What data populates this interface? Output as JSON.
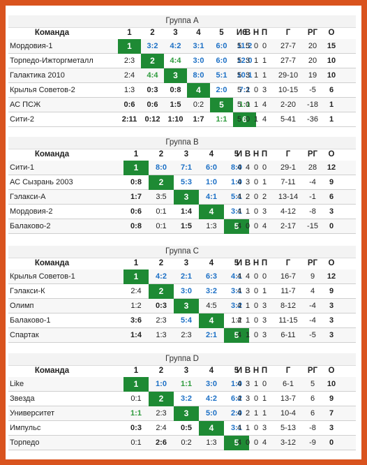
{
  "header_labels": {
    "team": "Команда",
    "stats": [
      "И",
      "В",
      "Н",
      "П",
      "Г",
      "РГ",
      "О"
    ]
  },
  "groups": [
    {
      "title": "Группа A",
      "numbers": [
        "1",
        "2",
        "3",
        "4",
        "5",
        "6"
      ],
      "rows": [
        {
          "team": "Мордовия-1",
          "cells": [
            {
              "v": "1",
              "t": "diag"
            },
            {
              "v": "3:2",
              "t": "w"
            },
            {
              "v": "4:2",
              "t": "w"
            },
            {
              "v": "3:1",
              "t": "w"
            },
            {
              "v": "6:0",
              "t": "wb"
            },
            {
              "v": "11:2",
              "t": "wb"
            }
          ],
          "stats": [
            "5",
            "5",
            "0",
            "0",
            "27-7",
            "20",
            "15"
          ]
        },
        {
          "team": "Торпедо-Ижторгметалл",
          "cells": [
            {
              "v": "2:3",
              "t": "l"
            },
            {
              "v": "2",
              "t": "diag"
            },
            {
              "v": "4:4",
              "t": "d"
            },
            {
              "v": "3:0",
              "t": "wb"
            },
            {
              "v": "6:0",
              "t": "wb"
            },
            {
              "v": "12:0",
              "t": "wb"
            }
          ],
          "stats": [
            "5",
            "3",
            "1",
            "1",
            "27-7",
            "20",
            "10"
          ]
        },
        {
          "team": "Галактика 2010",
          "cells": [
            {
              "v": "2:4",
              "t": "l"
            },
            {
              "v": "4:4",
              "t": "d"
            },
            {
              "v": "3",
              "t": "diag"
            },
            {
              "v": "8:0",
              "t": "wb"
            },
            {
              "v": "5:1",
              "t": "wb"
            },
            {
              "v": "10:1",
              "t": "wb"
            }
          ],
          "stats": [
            "5",
            "3",
            "1",
            "1",
            "29-10",
            "19",
            "10"
          ]
        },
        {
          "team": "Крылья Советов-2",
          "cells": [
            {
              "v": "1:3",
              "t": "l"
            },
            {
              "v": "0:3",
              "t": "lb"
            },
            {
              "v": "0:8",
              "t": "lb"
            },
            {
              "v": "4",
              "t": "diag"
            },
            {
              "v": "2:0",
              "t": "w"
            },
            {
              "v": "7:1",
              "t": "wb"
            }
          ],
          "stats": [
            "5",
            "2",
            "0",
            "3",
            "10-15",
            "-5",
            "6"
          ]
        },
        {
          "team": "АС ПСЖ",
          "cells": [
            {
              "v": "0:6",
              "t": "lb"
            },
            {
              "v": "0:6",
              "t": "lb"
            },
            {
              "v": "1:5",
              "t": "lb"
            },
            {
              "v": "0:2",
              "t": "l"
            },
            {
              "v": "5",
              "t": "diag"
            },
            {
              "v": "1:1",
              "t": "d"
            }
          ],
          "stats": [
            "5",
            "0",
            "1",
            "4",
            "2-20",
            "-18",
            "1"
          ]
        },
        {
          "team": "Сити-2",
          "cells": [
            {
              "v": "2:11",
              "t": "lb"
            },
            {
              "v": "0:12",
              "t": "lb"
            },
            {
              "v": "1:10",
              "t": "lb"
            },
            {
              "v": "1:7",
              "t": "lb"
            },
            {
              "v": "1:1",
              "t": "d"
            },
            {
              "v": "6",
              "t": "diag"
            }
          ],
          "stats": [
            "5",
            "0",
            "1",
            "4",
            "5-41",
            "-36",
            "1"
          ]
        }
      ]
    },
    {
      "title": "Группа B",
      "numbers": [
        "1",
        "2",
        "3",
        "4",
        "5"
      ],
      "rows": [
        {
          "team": "Сити-1",
          "cells": [
            {
              "v": "1",
              "t": "diag"
            },
            {
              "v": "8:0",
              "t": "wb"
            },
            {
              "v": "7:1",
              "t": "wb"
            },
            {
              "v": "6:0",
              "t": "wb"
            },
            {
              "v": "8:0",
              "t": "wb"
            }
          ],
          "stats": [
            "4",
            "4",
            "0",
            "0",
            "29-1",
            "28",
            "12"
          ]
        },
        {
          "team": "АС Сызрань 2003",
          "cells": [
            {
              "v": "0:8",
              "t": "lb"
            },
            {
              "v": "2",
              "t": "diag"
            },
            {
              "v": "5:3",
              "t": "w"
            },
            {
              "v": "1:0",
              "t": "w"
            },
            {
              "v": "1:0",
              "t": "w"
            }
          ],
          "stats": [
            "4",
            "3",
            "0",
            "1",
            "7-11",
            "-4",
            "9"
          ]
        },
        {
          "team": "Гэлакси-А",
          "cells": [
            {
              "v": "1:7",
              "t": "lb"
            },
            {
              "v": "3:5",
              "t": "l"
            },
            {
              "v": "3",
              "t": "diag"
            },
            {
              "v": "4:1",
              "t": "wb"
            },
            {
              "v": "5:1",
              "t": "wb"
            }
          ],
          "stats": [
            "4",
            "2",
            "0",
            "2",
            "13-14",
            "-1",
            "6"
          ]
        },
        {
          "team": "Мордовия-2",
          "cells": [
            {
              "v": "0:6",
              "t": "lb"
            },
            {
              "v": "0:1",
              "t": "l"
            },
            {
              "v": "1:4",
              "t": "lb"
            },
            {
              "v": "4",
              "t": "diag"
            },
            {
              "v": "3:1",
              "t": "w"
            }
          ],
          "stats": [
            "4",
            "1",
            "0",
            "3",
            "4-12",
            "-8",
            "3"
          ]
        },
        {
          "team": "Балаково-2",
          "cells": [
            {
              "v": "0:8",
              "t": "lb"
            },
            {
              "v": "0:1",
              "t": "l"
            },
            {
              "v": "1:5",
              "t": "lb"
            },
            {
              "v": "1:3",
              "t": "l"
            },
            {
              "v": "5",
              "t": "diag"
            }
          ],
          "stats": [
            "4",
            "0",
            "0",
            "4",
            "2-17",
            "-15",
            "0"
          ]
        }
      ]
    },
    {
      "title": "Группа C",
      "numbers": [
        "1",
        "2",
        "3",
        "4",
        "5"
      ],
      "rows": [
        {
          "team": "Крылья Советов-1",
          "cells": [
            {
              "v": "1",
              "t": "diag"
            },
            {
              "v": "4:2",
              "t": "w"
            },
            {
              "v": "2:1",
              "t": "w"
            },
            {
              "v": "6:3",
              "t": "wb"
            },
            {
              "v": "4:1",
              "t": "wb"
            }
          ],
          "stats": [
            "4",
            "4",
            "0",
            "0",
            "16-7",
            "9",
            "12"
          ]
        },
        {
          "team": "Гэлакси-К",
          "cells": [
            {
              "v": "2:4",
              "t": "l"
            },
            {
              "v": "2",
              "t": "diag"
            },
            {
              "v": "3:0",
              "t": "wb"
            },
            {
              "v": "3:2",
              "t": "w"
            },
            {
              "v": "3:1",
              "t": "w"
            }
          ],
          "stats": [
            "4",
            "3",
            "0",
            "1",
            "11-7",
            "4",
            "9"
          ]
        },
        {
          "team": "Олимп",
          "cells": [
            {
              "v": "1:2",
              "t": "l"
            },
            {
              "v": "0:3",
              "t": "lb"
            },
            {
              "v": "3",
              "t": "diag"
            },
            {
              "v": "4:5",
              "t": "l"
            },
            {
              "v": "3:2",
              "t": "w"
            }
          ],
          "stats": [
            "4",
            "1",
            "0",
            "3",
            "8-12",
            "-4",
            "3"
          ]
        },
        {
          "team": "Балаково-1",
          "cells": [
            {
              "v": "3:6",
              "t": "lb"
            },
            {
              "v": "2:3",
              "t": "l"
            },
            {
              "v": "5:4",
              "t": "w"
            },
            {
              "v": "4",
              "t": "diag"
            },
            {
              "v": "1:2",
              "t": "l"
            }
          ],
          "stats": [
            "4",
            "1",
            "0",
            "3",
            "11-15",
            "-4",
            "3"
          ]
        },
        {
          "team": "Спартак",
          "cells": [
            {
              "v": "1:4",
              "t": "lb"
            },
            {
              "v": "1:3",
              "t": "l"
            },
            {
              "v": "2:3",
              "t": "l"
            },
            {
              "v": "2:1",
              "t": "w"
            },
            {
              "v": "5",
              "t": "diag"
            }
          ],
          "stats": [
            "4",
            "1",
            "0",
            "3",
            "6-11",
            "-5",
            "3"
          ]
        }
      ]
    },
    {
      "title": "Группа D",
      "numbers": [
        "1",
        "2",
        "3",
        "4",
        "5"
      ],
      "rows": [
        {
          "team": "Like",
          "cells": [
            {
              "v": "1",
              "t": "diag"
            },
            {
              "v": "1:0",
              "t": "w"
            },
            {
              "v": "1:1",
              "t": "d"
            },
            {
              "v": "3:0",
              "t": "wb"
            },
            {
              "v": "1:0",
              "t": "w"
            }
          ],
          "stats": [
            "4",
            "3",
            "1",
            "0",
            "6-1",
            "5",
            "10"
          ]
        },
        {
          "team": "Звезда",
          "cells": [
            {
              "v": "0:1",
              "t": "l"
            },
            {
              "v": "2",
              "t": "diag"
            },
            {
              "v": "3:2",
              "t": "w"
            },
            {
              "v": "4:2",
              "t": "w"
            },
            {
              "v": "6:2",
              "t": "wb"
            }
          ],
          "stats": [
            "4",
            "3",
            "0",
            "1",
            "13-7",
            "6",
            "9"
          ]
        },
        {
          "team": "Университет",
          "cells": [
            {
              "v": "1:1",
              "t": "d"
            },
            {
              "v": "2:3",
              "t": "l"
            },
            {
              "v": "3",
              "t": "diag"
            },
            {
              "v": "5:0",
              "t": "wb"
            },
            {
              "v": "2:0",
              "t": "w"
            }
          ],
          "stats": [
            "4",
            "2",
            "1",
            "1",
            "10-4",
            "6",
            "7"
          ]
        },
        {
          "team": "Импульс",
          "cells": [
            {
              "v": "0:3",
              "t": "lb"
            },
            {
              "v": "2:4",
              "t": "l"
            },
            {
              "v": "0:5",
              "t": "lb"
            },
            {
              "v": "4",
              "t": "diag"
            },
            {
              "v": "3:1",
              "t": "w"
            }
          ],
          "stats": [
            "4",
            "1",
            "0",
            "3",
            "5-13",
            "-8",
            "3"
          ]
        },
        {
          "team": "Торпедо",
          "cells": [
            {
              "v": "0:1",
              "t": "l"
            },
            {
              "v": "2:6",
              "t": "lb"
            },
            {
              "v": "0:2",
              "t": "l"
            },
            {
              "v": "1:3",
              "t": "l"
            },
            {
              "v": "5",
              "t": "diag"
            }
          ],
          "stats": [
            "4",
            "0",
            "0",
            "4",
            "3-12",
            "-9",
            "0"
          ]
        }
      ]
    }
  ]
}
